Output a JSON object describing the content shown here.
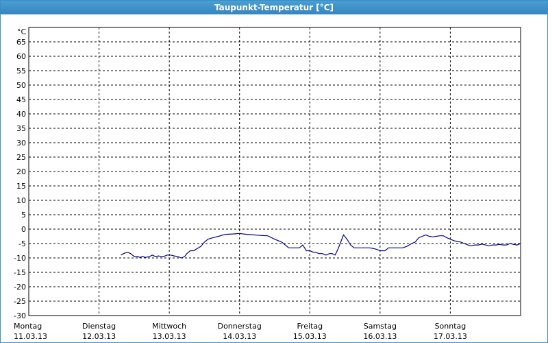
{
  "chart_data": {
    "type": "line",
    "title": "Taupunkt-Temperatur [°C]",
    "unit_label": "°C",
    "ylim": [
      -30,
      65
    ],
    "y_ticks": [
      65,
      60,
      55,
      50,
      45,
      40,
      35,
      30,
      25,
      20,
      15,
      10,
      5,
      0,
      -5,
      -10,
      -15,
      -20,
      -25,
      -30
    ],
    "x_range_days": [
      0,
      7
    ],
    "x_ticks": [
      {
        "day": "Montag",
        "date": "11.03.13"
      },
      {
        "day": "Dienstag",
        "date": "12.03.13"
      },
      {
        "day": "Mittwoch",
        "date": "13.03.13"
      },
      {
        "day": "Donnerstag",
        "date": "14.03.13"
      },
      {
        "day": "Freitag",
        "date": "15.03.13"
      },
      {
        "day": "Samstag",
        "date": "16.03.13"
      },
      {
        "day": "Sonntag",
        "date": "17.03.13"
      }
    ],
    "grid": true,
    "colors": {
      "line": "#00008b",
      "title_bar": "#3b8fc4",
      "grid": "#000000"
    },
    "series": [
      {
        "x": [
          1.31,
          1.35,
          1.4,
          1.45,
          1.5,
          1.55,
          1.58,
          1.62,
          1.66,
          1.72,
          1.76,
          1.8,
          1.85,
          1.88,
          1.92,
          1.97,
          2.02,
          2.07,
          2.12,
          2.17,
          2.22,
          2.25,
          2.3,
          2.35,
          2.38,
          2.45,
          2.5,
          2.55,
          2.62,
          2.7,
          2.8,
          2.9,
          3.0,
          3.1,
          3.2,
          3.3,
          3.4,
          3.5,
          3.6,
          3.7,
          3.8,
          3.85,
          3.9,
          3.95,
          4.0,
          4.05,
          4.08,
          4.13,
          4.18,
          4.23,
          4.28,
          4.32,
          4.36,
          4.4,
          4.44,
          4.48,
          4.53,
          4.58,
          4.63,
          4.7,
          4.75,
          4.8,
          4.85,
          4.9,
          4.95,
          5.0,
          5.03,
          5.07,
          5.12,
          5.17,
          5.22,
          5.27,
          5.32,
          5.38,
          5.45,
          5.5,
          5.55,
          5.6,
          5.65,
          5.7,
          5.75,
          5.8,
          5.85,
          5.9,
          5.95,
          6.0,
          6.05,
          6.1,
          6.15,
          6.2,
          6.25,
          6.3,
          6.35,
          6.4,
          6.45,
          6.5,
          6.55,
          6.6,
          6.65,
          6.7,
          6.75,
          6.8,
          6.85,
          6.9,
          6.95,
          7.0
        ],
        "y": [
          -9,
          -8.5,
          -8,
          -8.5,
          -9.5,
          -9.5,
          -9.8,
          -9.5,
          -9.8,
          -9.5,
          -9,
          -9.5,
          -9.3,
          -9.5,
          -9.5,
          -9,
          -9,
          -9.3,
          -9.5,
          -10,
          -9.5,
          -8.5,
          -7.5,
          -7.5,
          -7,
          -6,
          -4.5,
          -3.5,
          -3,
          -2.5,
          -1.8,
          -1.7,
          -1.5,
          -1.8,
          -2,
          -2.2,
          -2.3,
          -3.5,
          -4.5,
          -6.5,
          -6.5,
          -6.5,
          -5.5,
          -7.5,
          -7.5,
          -8,
          -8,
          -8.5,
          -8.5,
          -9,
          -8.5,
          -8.5,
          -9,
          -7,
          -4.5,
          -2,
          -3.5,
          -5.5,
          -6.5,
          -6.5,
          -6.5,
          -6.5,
          -6.5,
          -6.7,
          -7,
          -7.5,
          -7.5,
          -7.5,
          -6.5,
          -6.5,
          -6.5,
          -6.5,
          -6.5,
          -6,
          -5,
          -4.5,
          -3,
          -2.5,
          -2,
          -2.5,
          -2.7,
          -2.5,
          -2.3,
          -2.3,
          -3,
          -3.5,
          -4,
          -4.3,
          -4.5,
          -5,
          -5.5,
          -5.8,
          -5.5,
          -5.5,
          -5.2,
          -5.5,
          -5.8,
          -5.5,
          -5.5,
          -5.3,
          -5.5,
          -5.5,
          -5,
          -5.3,
          -5.5,
          -5
        ]
      }
    ]
  }
}
